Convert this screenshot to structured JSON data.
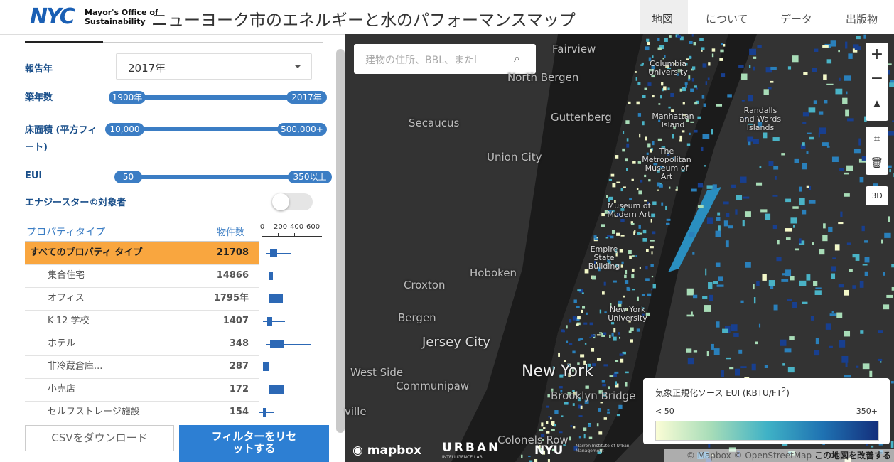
{
  "header": {
    "logo": "NYC",
    "org_line1": "Mayor's Office of",
    "org_line2": "Sustainability",
    "title": "ニューヨーク市のエネルギーと水のパフォーマンスマップ",
    "nav": [
      "地図",
      "について",
      "データ",
      "出版物"
    ]
  },
  "filters": {
    "year": {
      "label": "報告年",
      "value": "2017年"
    },
    "built": {
      "label": "築年数",
      "min": "1900年",
      "max": "2017年"
    },
    "area": {
      "label": "床面積 (平方フィート)",
      "min": "10,000",
      "max": "500,000+"
    },
    "eui": {
      "label": "EUI",
      "min": "50",
      "max": "350以上"
    },
    "energy_star": {
      "label": "エナジースター©対象者"
    }
  },
  "table": {
    "headers": [
      "プロパティタイプ",
      "物件数"
    ],
    "axis_ticks": [
      "0",
      "200",
      "400",
      "600"
    ],
    "rows": [
      [
        "すべてのプロパティ タイプ",
        "21708"
      ],
      [
        "集合住宅",
        "14866"
      ],
      [
        "オフィス",
        "1795年"
      ],
      [
        "K-12 学校",
        "1407"
      ],
      [
        "ホテル",
        "348"
      ],
      [
        "非冷蔵倉庫...",
        "287"
      ],
      [
        "小売店",
        "172"
      ],
      [
        "セルフストレージ施設",
        "154"
      ]
    ]
  },
  "buttons": [
    "CSVをダウンロード",
    "フィルターをリセットする"
  ],
  "map": {
    "search_placeholder": "建物の住所、BBL、またl",
    "labels": [
      "Fairview",
      "North Bergen",
      "Columbia University",
      "Secaucus",
      "Guttenberg",
      "Manhattan Island",
      "Randalls and Wards Islands",
      "Union City",
      "The Metropolitan Museum of Art",
      "Museum of Modern Art",
      "Empire State Building",
      "Hoboken",
      "Croxton",
      "Bergen",
      "New York University",
      "Jersey City",
      "West Side",
      "Communipaw",
      "New York",
      "Brooklyn Bridge",
      "ville",
      "Colonels Row"
    ],
    "control_3d": "3D",
    "legend": {
      "title": "気象正規化ソース EUI (KBTU/FT",
      "title_sup": "2",
      "title_end": ")",
      "min": "< 50",
      "max": "350+"
    },
    "footer": {
      "mapbox": "mapbox",
      "urban": "URBAN",
      "urban_sub": "INTELLIGENCE LAB",
      "nyu": "NYU",
      "marron": "Marron Institute of Urban Management",
      "attribution": "© Mapbox © OpenStreetMap",
      "improve": "この地図を改善する"
    }
  }
}
